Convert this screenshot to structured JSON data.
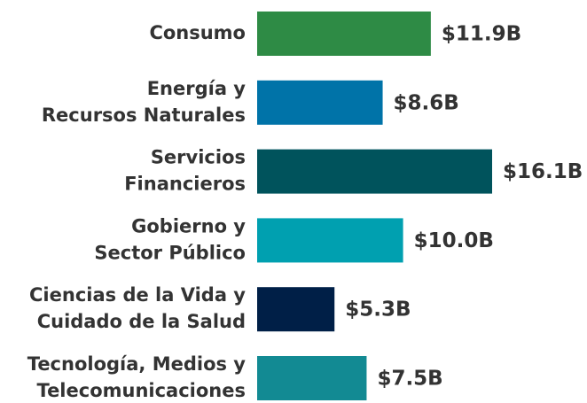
{
  "chart_data": {
    "type": "bar",
    "orientation": "horizontal",
    "categories": [
      [
        "Consumo"
      ],
      [
        "Energía y",
        "Recursos Naturales"
      ],
      [
        "Servicios",
        "Financieros"
      ],
      [
        "Gobierno y",
        "Sector Público"
      ],
      [
        "Ciencias de la Vida y",
        "Cuidado de la Salud"
      ],
      [
        "Tecnología, Medios y",
        "Telecomunicaciones"
      ]
    ],
    "values": [
      11.9,
      8.6,
      16.1,
      10.0,
      5.3,
      7.5
    ],
    "value_labels": [
      "$11.9B",
      "$8.6B",
      "$16.1B",
      "$10.0B",
      "$5.3B",
      "$7.5B"
    ],
    "colors": [
      "#2e8b45",
      "#0073a8",
      "#00535c",
      "#00a0b0",
      "#001f47",
      "#128a93"
    ]
  }
}
